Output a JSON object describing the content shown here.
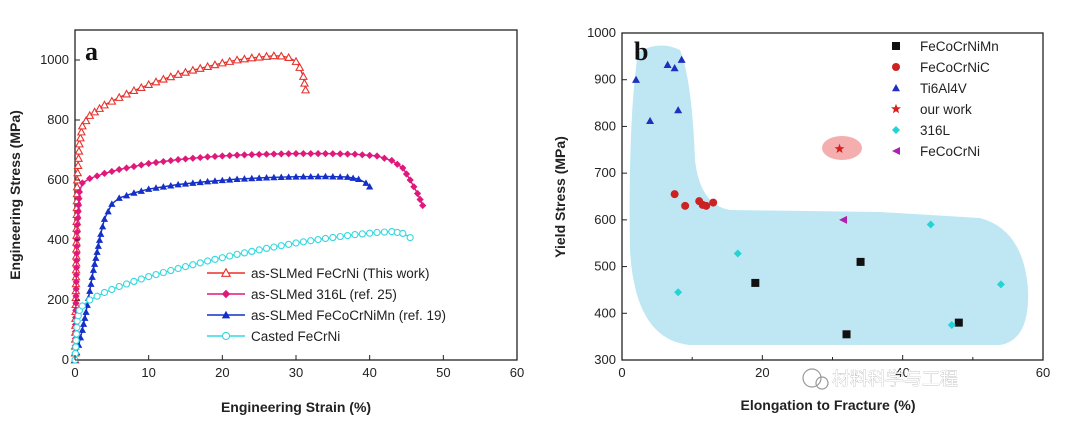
{
  "watermark": "材料科学与工程",
  "chart_data": [
    {
      "panel": "a",
      "type": "line",
      "title": "",
      "xlabel": "Engineering Strain (%)",
      "ylabel": "Engineering Stress (MPa)",
      "xlim": [
        0,
        60
      ],
      "ylim": [
        0,
        1100
      ],
      "xticks": [
        0,
        10,
        20,
        30,
        40,
        50,
        60
      ],
      "yticks": [
        0,
        200,
        400,
        600,
        800,
        1000
      ],
      "grid": false,
      "legend_position": "bottom-right",
      "series": [
        {
          "name": "as-SLMed FeCrNi (This work)",
          "color": "#e8312c",
          "marker": "open-triangle",
          "x": [
            0,
            0.3,
            0.6,
            1,
            2,
            4,
            6,
            8,
            10,
            12,
            14,
            16,
            18,
            20,
            22,
            24,
            26,
            27,
            28,
            29,
            30,
            30.5,
            31,
            31.3
          ],
          "y": [
            0,
            600,
            720,
            780,
            815,
            850,
            875,
            898,
            918,
            936,
            952,
            966,
            978,
            990,
            1000,
            1007,
            1012,
            1014,
            1013,
            1008,
            995,
            975,
            945,
            900
          ]
        },
        {
          "name": "as-SLMed 316L (ref. 25)",
          "color": "#e0187c",
          "marker": "filled-diamond",
          "x": [
            0,
            0.3,
            0.6,
            1,
            2,
            4,
            6,
            8,
            10,
            14,
            18,
            22,
            26,
            30,
            34,
            38,
            41,
            43,
            44.5,
            45.5,
            46.5,
            47.2
          ],
          "y": [
            0,
            450,
            560,
            590,
            605,
            622,
            635,
            645,
            655,
            668,
            677,
            683,
            686,
            688,
            688,
            686,
            680,
            665,
            640,
            600,
            555,
            515
          ]
        },
        {
          "name": "as-SLMed FeCoCrNiMn (ref. 19)",
          "color": "#1430c8",
          "marker": "filled-triangle",
          "x": [
            0,
            0.5,
            1,
            1.5,
            2,
            2.5,
            3,
            3.5,
            4,
            5,
            6,
            8,
            10,
            14,
            18,
            22,
            26,
            30,
            34,
            37,
            38.5,
            39.5,
            40
          ],
          "y": [
            0,
            50,
            100,
            160,
            230,
            300,
            360,
            420,
            470,
            520,
            540,
            557,
            570,
            585,
            595,
            603,
            608,
            611,
            612,
            610,
            603,
            590,
            578
          ]
        },
        {
          "name": "Casted FeCrNi",
          "color": "#33d8e0",
          "marker": "open-circle",
          "x": [
            0,
            0.3,
            0.6,
            1,
            2,
            4,
            6,
            8,
            10,
            14,
            18,
            22,
            26,
            30,
            34,
            38,
            41,
            43,
            44.5,
            45.5
          ],
          "y": [
            0,
            130,
            165,
            180,
            200,
            225,
            245,
            262,
            278,
            305,
            330,
            352,
            372,
            390,
            405,
            418,
            425,
            428,
            422,
            408
          ]
        }
      ]
    },
    {
      "panel": "b",
      "type": "scatter",
      "title": "",
      "xlabel": "Elongation to Fracture (%)",
      "ylabel": "Yield Stress (MPa)",
      "xlim": [
        0,
        60
      ],
      "ylim": [
        300,
        1000
      ],
      "xticks": [
        0,
        20,
        40,
        60
      ],
      "xtick_labels": [
        "0",
        "20",
        "40",
        "60"
      ],
      "yticks": [
        300,
        400,
        500,
        600,
        700,
        800,
        900,
        1000
      ],
      "grid": false,
      "legend_position": "top-right",
      "series": [
        {
          "name": "FeCoCrNiMn",
          "color": "#111111",
          "marker": "square",
          "points": [
            [
              19,
              465
            ],
            [
              32,
              355
            ],
            [
              34,
              510
            ],
            [
              48,
              380
            ]
          ]
        },
        {
          "name": "FeCoCrNiC",
          "color": "#cc2222",
          "marker": "circle",
          "points": [
            [
              7.5,
              655
            ],
            [
              9,
              630
            ],
            [
              11,
              640
            ],
            [
              11.5,
              632
            ],
            [
              12,
              630
            ],
            [
              13,
              637
            ]
          ]
        },
        {
          "name": "Ti6Al4V",
          "color": "#1f2fbf",
          "marker": "triangle",
          "points": [
            [
              2,
              900
            ],
            [
              4,
              812
            ],
            [
              6.5,
              932
            ],
            [
              7.5,
              925
            ],
            [
              8,
              835
            ],
            [
              8.5,
              943
            ]
          ]
        },
        {
          "name": "our work",
          "color": "#d62020",
          "marker": "star",
          "points": [
            [
              31,
              752
            ]
          ]
        },
        {
          "name": "316L",
          "color": "#22d4d4",
          "marker": "diamond",
          "points": [
            [
              8,
              445
            ],
            [
              16.5,
              528
            ],
            [
              44,
              590
            ],
            [
              47,
              375
            ],
            [
              54,
              462
            ]
          ]
        },
        {
          "name": "FeCoCrNi",
          "color": "#b020b0",
          "marker": "left-triangle",
          "points": [
            [
              31.5,
              600
            ]
          ]
        }
      ],
      "annotations": [
        {
          "type": "highlight-ellipse",
          "around": "our work",
          "color": "#f2a0a0"
        },
        {
          "type": "shaded-region",
          "color": "#bfe7f3"
        }
      ]
    }
  ]
}
